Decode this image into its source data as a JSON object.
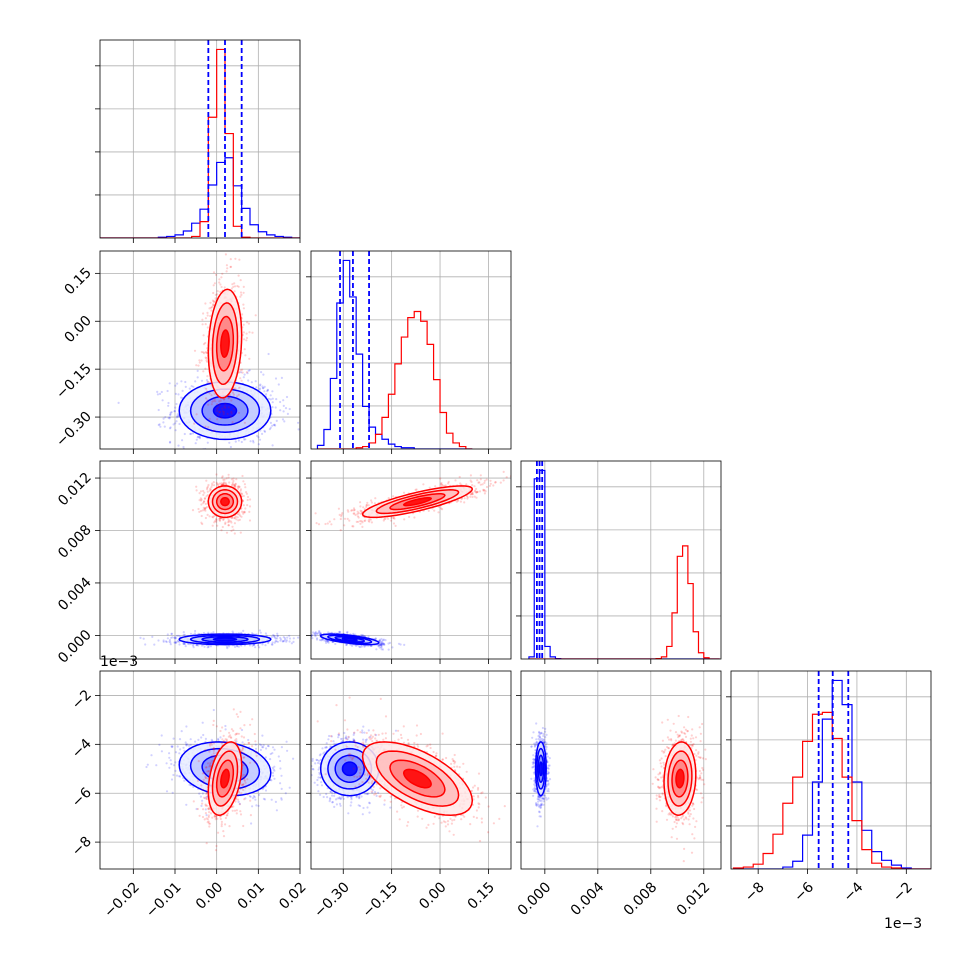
{
  "chart_data": {
    "type": "corner",
    "parameters": [
      {
        "range": [
          -0.028,
          0.02
        ],
        "ticks": [
          -0.02,
          -0.01,
          0.0,
          0.01,
          0.02
        ],
        "tick_labels": [
          "−0.02",
          "−0.01",
          "0.00",
          "0.01",
          "0.02"
        ]
      },
      {
        "range": [
          -0.4,
          0.22
        ],
        "ticks": [
          -0.3,
          -0.15,
          0.0,
          0.15
        ],
        "tick_labels": [
          "−0.30",
          "−0.15",
          "0.00",
          "0.15"
        ]
      },
      {
        "range": [
          -0.0018,
          0.0133
        ],
        "ticks": [
          0.0,
          0.004,
          0.008,
          0.012
        ],
        "tick_labels": [
          "0.000",
          "0.004",
          "0.008",
          "0.012"
        ]
      },
      {
        "range": [
          -9.1,
          -1.0
        ],
        "ticks": [
          -8,
          -6,
          -4,
          -2
        ],
        "tick_labels": [
          "−8",
          "−6",
          "−4",
          "−2"
        ],
        "offset_label": "1e−3"
      }
    ],
    "series": [
      {
        "name": "",
        "color": "#0000ff",
        "means": [
          0.002,
          -0.28,
          -0.0003,
          -5.0
        ],
        "sigmas": [
          0.0055,
          0.045,
          0.0002,
          0.55
        ],
        "quantiles": [
          [
            -0.002,
            0.002,
            0.006
          ],
          [
            -0.31,
            -0.27,
            -0.22
          ],
          [
            -0.0006,
            -0.0004,
            -0.0002
          ],
          [
            -5.55,
            -4.98,
            -4.35
          ]
        ]
      },
      {
        "name": "",
        "color": "#ff0000",
        "means": [
          0.002,
          -0.07,
          0.0102,
          -5.4
        ],
        "sigmas": [
          0.002,
          0.085,
          0.0006,
          0.75
        ]
      }
    ],
    "hist_values": [
      {
        "bins": [
          -0.028,
          -0.026,
          -0.024,
          -0.022,
          -0.02,
          -0.018,
          -0.016,
          -0.014,
          -0.012,
          -0.01,
          -0.008,
          -0.006,
          -0.004,
          -0.002,
          0.0,
          0.002,
          0.004,
          0.006,
          0.008,
          0.01,
          0.012,
          0.014,
          0.016,
          0.018,
          0.02
        ],
        "blue": [
          0,
          0,
          0,
          0,
          0,
          0,
          0,
          0.01,
          0.02,
          0.04,
          0.09,
          0.19,
          0.37,
          0.68,
          0.97,
          1.03,
          0.67,
          0.38,
          0.17,
          0.08,
          0.04,
          0.02,
          0.01,
          0
        ],
        "red": [
          0,
          0,
          0,
          0,
          0,
          0,
          0,
          0,
          0,
          0,
          0,
          0.02,
          0.21,
          1.55,
          2.42,
          1.34,
          0.15,
          0.01,
          0,
          0,
          0,
          0,
          0,
          0
        ]
      },
      {
        "bins": [
          -0.38,
          -0.36,
          -0.34,
          -0.32,
          -0.3,
          -0.28,
          -0.26,
          -0.24,
          -0.22,
          -0.2,
          -0.18,
          -0.16,
          -0.14,
          -0.12,
          -0.1,
          -0.08,
          -0.06,
          -0.04,
          -0.02,
          0.0,
          0.02,
          0.04,
          0.06,
          0.08,
          0.1
        ],
        "blue": [
          0.03,
          0.16,
          0.58,
          1.2,
          1.55,
          1.25,
          0.78,
          0.35,
          0.18,
          0.12,
          0.08,
          0.04,
          0.02,
          0.01,
          0.01,
          0,
          0,
          0,
          0,
          0,
          0,
          0,
          0,
          0
        ],
        "red": [
          0,
          0,
          0,
          0,
          0,
          0,
          0.01,
          0.02,
          0.05,
          0.12,
          0.26,
          0.45,
          0.7,
          0.92,
          1.08,
          1.13,
          1.05,
          0.86,
          0.57,
          0.3,
          0.13,
          0.05,
          0.02,
          0
        ]
      },
      {
        "bins": [
          -0.0012,
          -0.0008,
          -0.0004,
          0.0,
          0.0004,
          0.0008,
          0.0012,
          0.0016,
          0.002,
          0.0024,
          0.0028,
          0.0032,
          0.0036,
          0.004,
          0.0044,
          0.0048,
          0.0052,
          0.0056,
          0.006,
          0.0064,
          0.0068,
          0.0072,
          0.0076,
          0.008,
          0.0084,
          0.0088,
          0.0092,
          0.0096,
          0.01,
          0.0104,
          0.0108,
          0.0112,
          0.0116,
          0.012,
          0.0124,
          0.0128,
          0.0132
        ],
        "blue": [
          0.05,
          4.3,
          4.5,
          0.3,
          0.05,
          0.01,
          0,
          0,
          0,
          0,
          0,
          0,
          0,
          0,
          0,
          0,
          0,
          0,
          0,
          0,
          0,
          0,
          0,
          0,
          0,
          0,
          0,
          0,
          0,
          0,
          0,
          0,
          0,
          0,
          0,
          0
        ],
        "red": [
          0,
          0,
          0,
          0,
          0,
          0,
          0,
          0,
          0,
          0,
          0,
          0,
          0,
          0,
          0,
          0,
          0,
          0,
          0,
          0,
          0,
          0,
          0,
          0,
          0.01,
          0.05,
          0.3,
          1.1,
          2.45,
          2.7,
          1.8,
          0.65,
          0.15,
          0.03,
          0,
          0
        ]
      },
      {
        "bins": [
          -9.0,
          -8.6,
          -8.2,
          -7.8,
          -7.4,
          -7.0,
          -6.6,
          -6.2,
          -5.8,
          -5.4,
          -5.0,
          -4.6,
          -4.2,
          -3.8,
          -3.4,
          -3.0,
          -2.6,
          -2.2,
          -1.8,
          -1.4,
          -1.0
        ],
        "blue": [
          0,
          0,
          0,
          0,
          0,
          0.02,
          0.08,
          0.35,
          0.9,
          1.55,
          1.95,
          1.7,
          0.9,
          0.4,
          0.18,
          0.09,
          0.04,
          0.01,
          0,
          0
        ],
        "red": [
          0.01,
          0.02,
          0.05,
          0.16,
          0.36,
          0.68,
          0.95,
          1.32,
          1.6,
          1.62,
          1.35,
          0.95,
          0.5,
          0.2,
          0.06,
          0.02,
          0.01,
          0,
          0,
          0
        ]
      }
    ],
    "contour_levels": [
      "0.5",
      "1.0",
      "1.5",
      "2.0"
    ],
    "grid": true
  }
}
